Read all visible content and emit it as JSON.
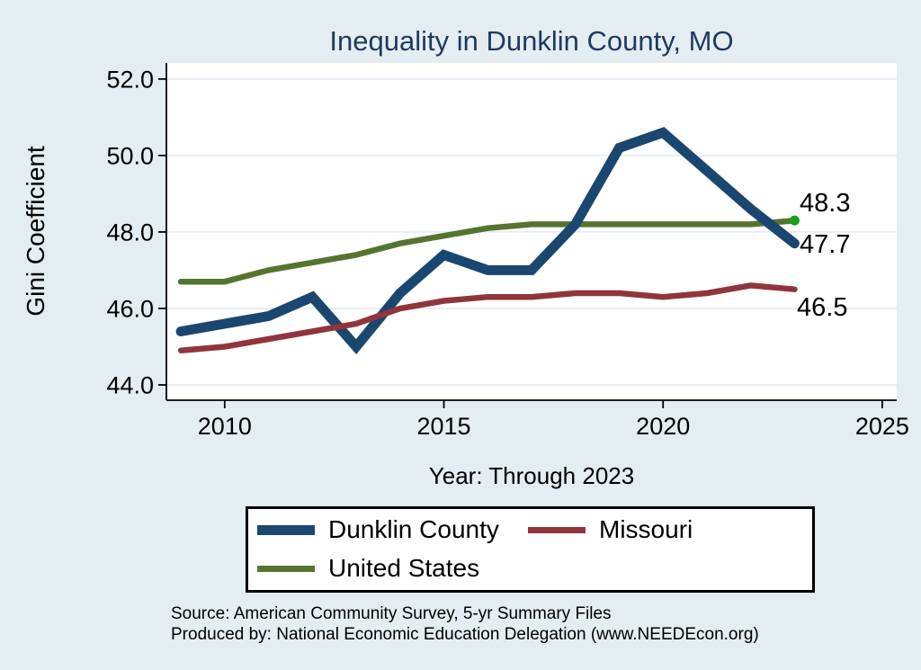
{
  "chart_data": {
    "type": "line",
    "title": "Inequality in Dunklin County, MO",
    "ylabel": "Gini Coefficient",
    "xlabel": "Year: Through 2023",
    "x": [
      2009,
      2010,
      2011,
      2012,
      2013,
      2014,
      2015,
      2016,
      2017,
      2018,
      2019,
      2020,
      2021,
      2022,
      2023
    ],
    "series": [
      {
        "name": "Dunklin County",
        "color": "#1a476f",
        "line_width": 11,
        "values": [
          45.4,
          45.6,
          45.8,
          46.3,
          45.0,
          46.4,
          47.4,
          47.0,
          47.0,
          48.2,
          50.2,
          50.6,
          49.6,
          48.6,
          47.7
        ],
        "end_label": "47.7",
        "end_marker": false
      },
      {
        "name": "Missouri",
        "color": "#90353b",
        "line_width": 6.5,
        "values": [
          44.9,
          45.0,
          45.2,
          45.4,
          45.6,
          46.0,
          46.2,
          46.3,
          46.3,
          46.4,
          46.4,
          46.3,
          46.4,
          46.6,
          46.5
        ],
        "end_label": "46.5",
        "end_marker": false
      },
      {
        "name": "United States",
        "color": "#55752f",
        "line_width": 6.5,
        "values": [
          46.7,
          46.7,
          47.0,
          47.2,
          47.4,
          47.7,
          47.9,
          48.1,
          48.2,
          48.2,
          48.2,
          48.2,
          48.2,
          48.2,
          48.3
        ],
        "end_label": "48.3",
        "end_marker": true,
        "end_marker_color": "#19a019"
      }
    ],
    "draw_order": [
      2,
      0,
      1
    ],
    "xlim": [
      2008.67,
      2025.33
    ],
    "ylim": [
      43.6,
      52.42
    ],
    "x_ticks": {
      "values": [
        2010,
        2015,
        2020,
        2025
      ],
      "labels": [
        "2010",
        "2015",
        "2020",
        "2025"
      ]
    },
    "y_ticks": {
      "values": [
        52,
        50,
        48,
        46,
        44
      ],
      "labels": [
        "52.0",
        "50.0",
        "48.0",
        "46.0",
        "44.0"
      ]
    },
    "grid": true,
    "legend_position": "bottom",
    "colors": {
      "background": "#e4edf1",
      "plot_background": "#ffffff",
      "gridline": "#dfe9f2",
      "axis": "#000000",
      "title": "#1f3a5f",
      "text": "#000000"
    }
  },
  "legend": {
    "entries": [
      {
        "label": "Dunklin County"
      },
      {
        "label": "Missouri"
      },
      {
        "label": "United States"
      }
    ]
  },
  "notes": {
    "source": "Source: American Community Survey, 5-yr Summary Files",
    "produced_by": "Produced by: National Economic Education Delegation (www.NEEDEcon.org)"
  }
}
